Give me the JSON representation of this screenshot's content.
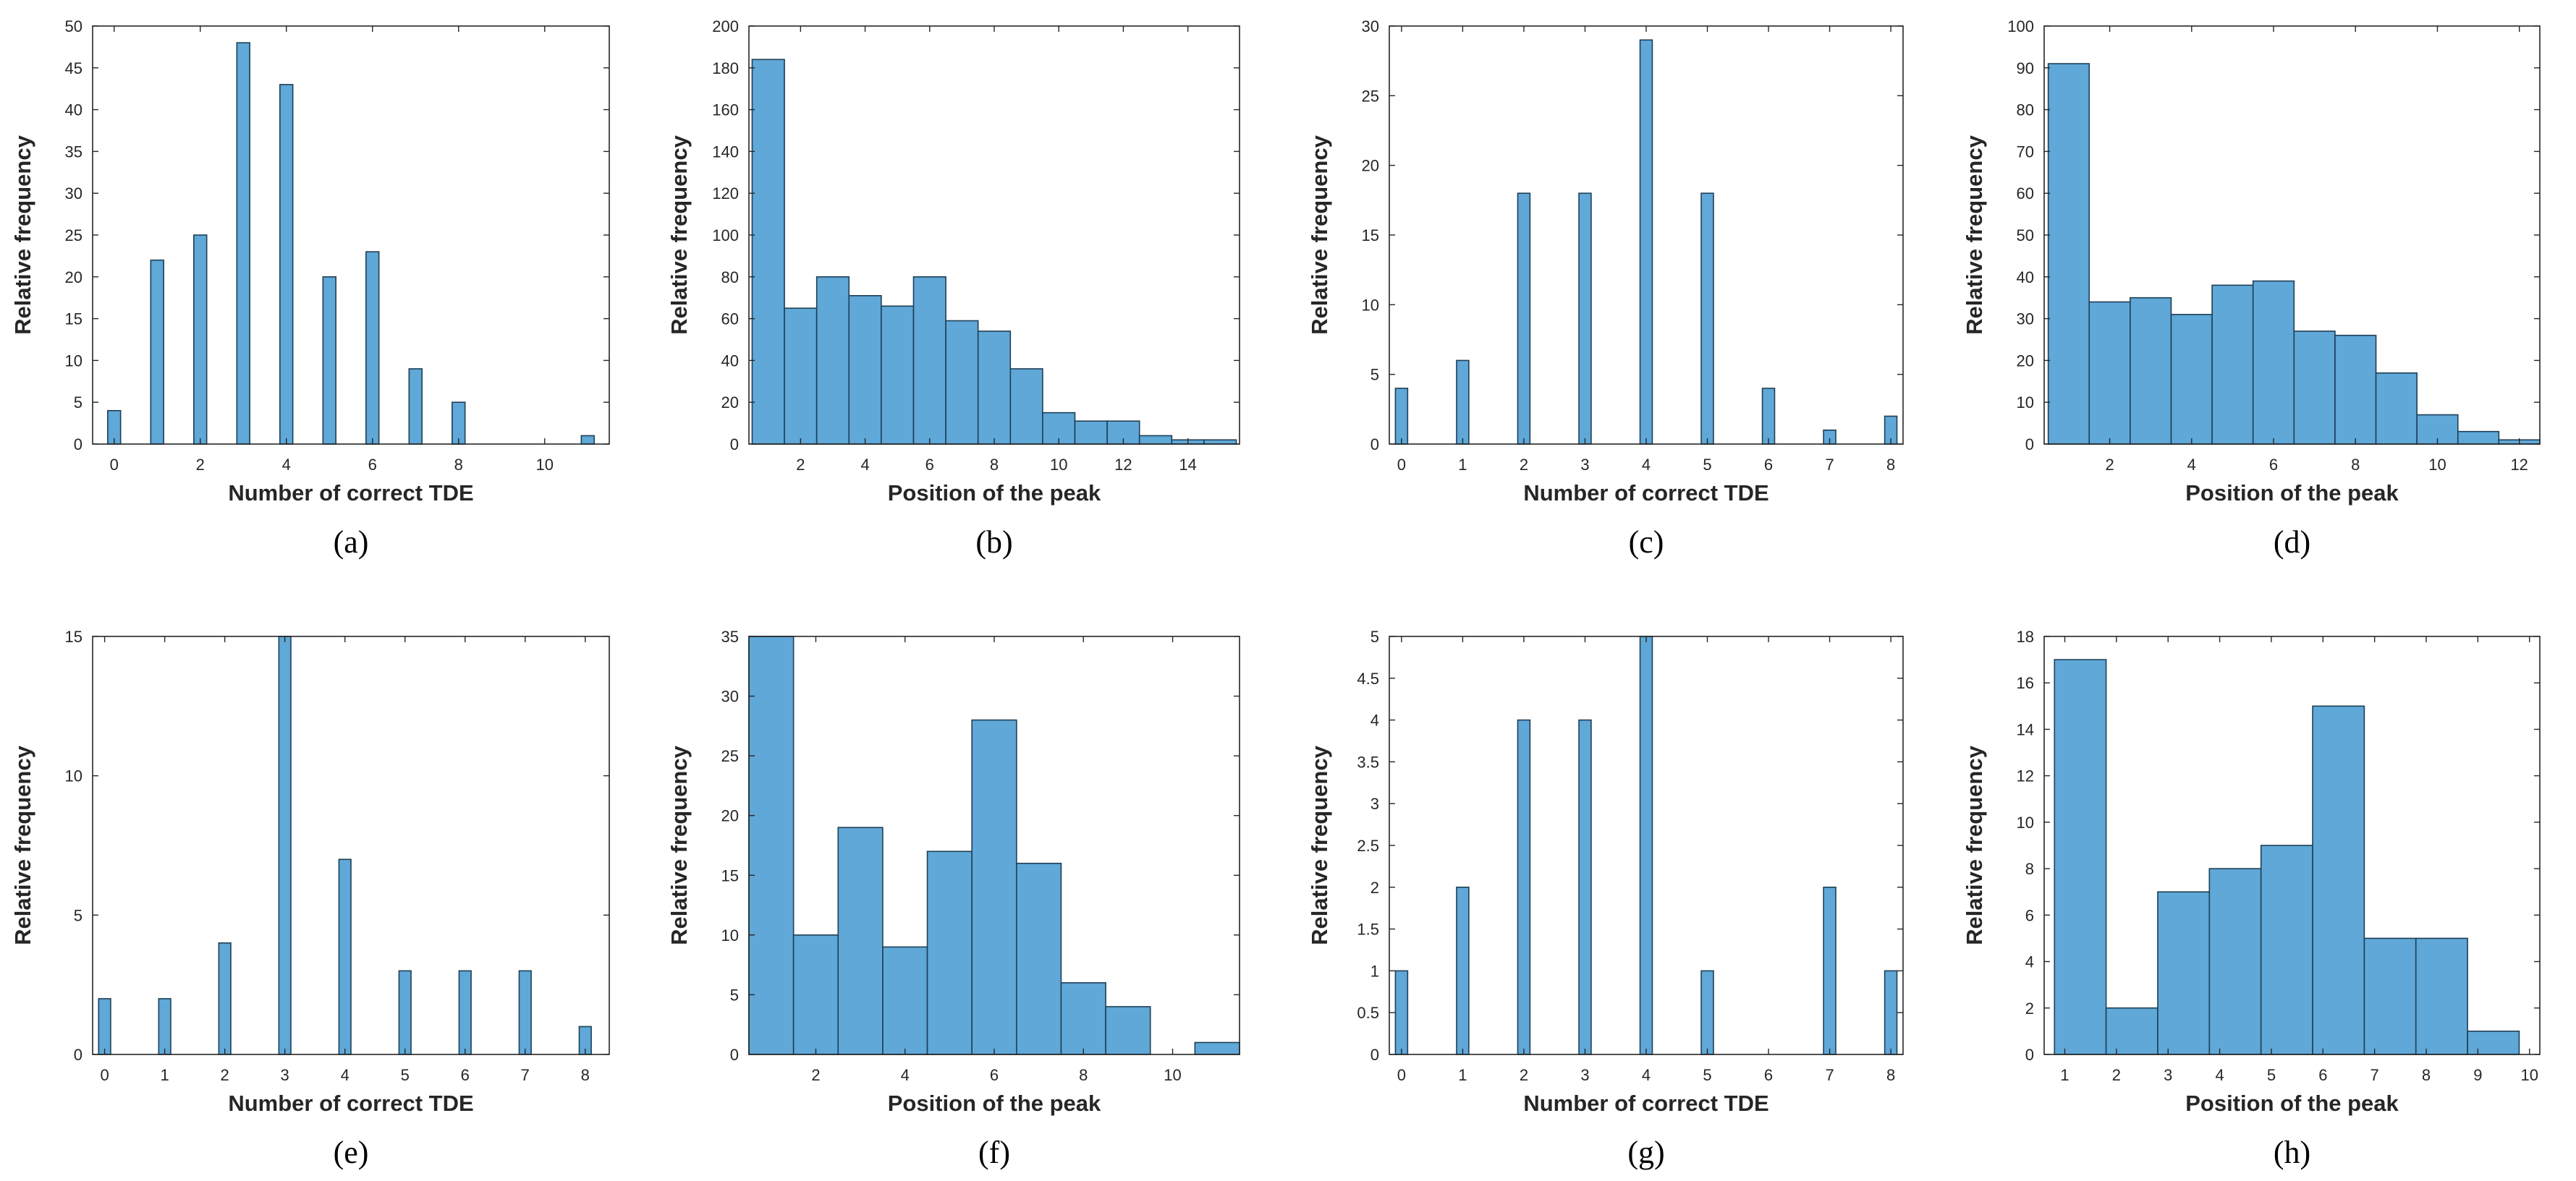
{
  "colors": {
    "bar_fill": "#5fa8d8",
    "bar_edge": "#1f3f55",
    "axis": "#262626"
  },
  "chart_data": [
    {
      "id": "a",
      "caption": "(a)",
      "type": "bar",
      "xlabel": "Number of correct TDE",
      "ylabel": "Relative frequency",
      "xlim": [
        -0.5,
        11.5
      ],
      "ylim": [
        0,
        50
      ],
      "xticks": [
        0,
        2,
        4,
        6,
        8,
        10
      ],
      "xtick_labels": [
        "0",
        "2",
        "4",
        "6",
        "8",
        "10"
      ],
      "yticks": [
        0,
        5,
        10,
        15,
        20,
        25,
        30,
        35,
        40,
        45,
        50
      ],
      "ytick_labels": [
        "0",
        "5",
        "10",
        "15",
        "20",
        "25",
        "30",
        "35",
        "40",
        "45",
        "50"
      ],
      "bin_width": 0.3,
      "bins": [
        {
          "center": 0,
          "value": 4
        },
        {
          "center": 1,
          "value": 22
        },
        {
          "center": 2,
          "value": 25
        },
        {
          "center": 3,
          "value": 48
        },
        {
          "center": 4,
          "value": 43
        },
        {
          "center": 5,
          "value": 20
        },
        {
          "center": 6,
          "value": 23
        },
        {
          "center": 7,
          "value": 9
        },
        {
          "center": 8,
          "value": 5
        },
        {
          "center": 11,
          "value": 1
        }
      ]
    },
    {
      "id": "b",
      "caption": "(b)",
      "type": "bar",
      "xlabel": "Position of the peak",
      "ylabel": "Relative frequency",
      "xlim": [
        0.4,
        15.6
      ],
      "ylim": [
        0,
        200
      ],
      "xticks": [
        2,
        4,
        6,
        8,
        10,
        12,
        14
      ],
      "xtick_labels": [
        "2",
        "4",
        "6",
        "8",
        "10",
        "12",
        "14"
      ],
      "yticks": [
        0,
        20,
        40,
        60,
        80,
        100,
        120,
        140,
        160,
        180,
        200
      ],
      "ytick_labels": [
        "0",
        "20",
        "40",
        "60",
        "80",
        "100",
        "120",
        "140",
        "160",
        "180",
        "200"
      ],
      "bin_width": 1.0,
      "bins": [
        {
          "center": 1,
          "value": 184
        },
        {
          "center": 2,
          "value": 65
        },
        {
          "center": 3,
          "value": 80
        },
        {
          "center": 4,
          "value": 71
        },
        {
          "center": 5,
          "value": 66
        },
        {
          "center": 6,
          "value": 80
        },
        {
          "center": 7,
          "value": 59
        },
        {
          "center": 8,
          "value": 54
        },
        {
          "center": 9,
          "value": 36
        },
        {
          "center": 10,
          "value": 15
        },
        {
          "center": 11,
          "value": 11
        },
        {
          "center": 12,
          "value": 11
        },
        {
          "center": 13,
          "value": 4
        },
        {
          "center": 14,
          "value": 2
        },
        {
          "center": 15,
          "value": 2
        }
      ]
    },
    {
      "id": "c",
      "caption": "(c)",
      "type": "bar",
      "xlabel": "Number of correct TDE",
      "ylabel": "Relative frequency",
      "xlim": [
        -0.2,
        8.2
      ],
      "ylim": [
        0,
        30
      ],
      "xticks": [
        0,
        1,
        2,
        3,
        4,
        5,
        6,
        7,
        8
      ],
      "xtick_labels": [
        "0",
        "1",
        "2",
        "3",
        "4",
        "5",
        "6",
        "7",
        "8"
      ],
      "yticks": [
        0,
        5,
        10,
        15,
        20,
        25,
        30
      ],
      "ytick_labels": [
        "0",
        "5",
        "10",
        "15",
        "20",
        "25",
        "30"
      ],
      "bin_width": 0.2,
      "bins": [
        {
          "center": 0,
          "value": 4
        },
        {
          "center": 1,
          "value": 6
        },
        {
          "center": 2,
          "value": 18
        },
        {
          "center": 3,
          "value": 18
        },
        {
          "center": 4,
          "value": 29
        },
        {
          "center": 5,
          "value": 18
        },
        {
          "center": 6,
          "value": 4
        },
        {
          "center": 7,
          "value": 1
        },
        {
          "center": 8,
          "value": 2
        }
      ]
    },
    {
      "id": "d",
      "caption": "(d)",
      "type": "bar",
      "xlabel": "Position of the peak",
      "ylabel": "Relative frequency",
      "xlim": [
        0.4,
        12.5
      ],
      "ylim": [
        0,
        100
      ],
      "xticks": [
        2,
        4,
        6,
        8,
        10,
        12
      ],
      "xtick_labels": [
        "2",
        "4",
        "6",
        "8",
        "10",
        "12"
      ],
      "yticks": [
        0,
        10,
        20,
        30,
        40,
        50,
        60,
        70,
        80,
        90,
        100
      ],
      "ytick_labels": [
        "0",
        "10",
        "20",
        "30",
        "40",
        "50",
        "60",
        "70",
        "80",
        "90",
        "100"
      ],
      "bin_width": 1.0,
      "bins": [
        {
          "center": 1,
          "value": 91
        },
        {
          "center": 2,
          "value": 34
        },
        {
          "center": 3,
          "value": 35
        },
        {
          "center": 4,
          "value": 31
        },
        {
          "center": 5,
          "value": 38
        },
        {
          "center": 6,
          "value": 39
        },
        {
          "center": 7,
          "value": 27
        },
        {
          "center": 8,
          "value": 26
        },
        {
          "center": 9,
          "value": 17
        },
        {
          "center": 10,
          "value": 7
        },
        {
          "center": 11,
          "value": 3
        },
        {
          "center": 12,
          "value": 1
        }
      ]
    },
    {
      "id": "e",
      "caption": "(e)",
      "type": "bar",
      "xlabel": "Number of correct TDE",
      "ylabel": "Relative frequency",
      "xlim": [
        -0.2,
        8.4
      ],
      "ylim": [
        0,
        15
      ],
      "xticks": [
        0,
        1,
        2,
        3,
        4,
        5,
        6,
        7,
        8
      ],
      "xtick_labels": [
        "0",
        "1",
        "2",
        "3",
        "4",
        "5",
        "6",
        "7",
        "8"
      ],
      "yticks": [
        0,
        5,
        10,
        15
      ],
      "ytick_labels": [
        "0",
        "5",
        "10",
        "15"
      ],
      "bin_width": 0.2,
      "bins": [
        {
          "center": 0,
          "value": 2
        },
        {
          "center": 1,
          "value": 2
        },
        {
          "center": 2,
          "value": 4
        },
        {
          "center": 3,
          "value": 15
        },
        {
          "center": 4,
          "value": 7
        },
        {
          "center": 5,
          "value": 3
        },
        {
          "center": 6,
          "value": 3
        },
        {
          "center": 7,
          "value": 3
        },
        {
          "center": 8,
          "value": 1
        }
      ]
    },
    {
      "id": "f",
      "caption": "(f)",
      "type": "bar",
      "xlabel": "Position of the peak",
      "ylabel": "Relative frequency",
      "xlim": [
        0.5,
        11.5
      ],
      "ylim": [
        0,
        35
      ],
      "xticks": [
        2,
        4,
        6,
        8,
        10
      ],
      "xtick_labels": [
        "2",
        "4",
        "6",
        "8",
        "10"
      ],
      "yticks": [
        0,
        5,
        10,
        15,
        20,
        25,
        30,
        35
      ],
      "ytick_labels": [
        "0",
        "5",
        "10",
        "15",
        "20",
        "25",
        "30",
        "35"
      ],
      "bin_width": 1.0,
      "bins": [
        {
          "center": 1,
          "value": 35
        },
        {
          "center": 2,
          "value": 10
        },
        {
          "center": 3,
          "value": 19
        },
        {
          "center": 4,
          "value": 9
        },
        {
          "center": 5,
          "value": 17
        },
        {
          "center": 6,
          "value": 28
        },
        {
          "center": 7,
          "value": 16
        },
        {
          "center": 8,
          "value": 6
        },
        {
          "center": 9,
          "value": 4
        },
        {
          "center": 10,
          "value": 0
        },
        {
          "center": 11,
          "value": 1
        }
      ]
    },
    {
      "id": "g",
      "caption": "(g)",
      "type": "bar",
      "xlabel": "Number of correct TDE",
      "ylabel": "Relative frequency",
      "xlim": [
        -0.2,
        8.2
      ],
      "ylim": [
        0,
        5
      ],
      "xticks": [
        0,
        1,
        2,
        3,
        4,
        5,
        6,
        7,
        8
      ],
      "xtick_labels": [
        "0",
        "1",
        "2",
        "3",
        "4",
        "5",
        "6",
        "7",
        "8"
      ],
      "yticks": [
        0,
        0.5,
        1,
        1.5,
        2,
        2.5,
        3,
        3.5,
        4,
        4.5,
        5
      ],
      "ytick_labels": [
        "0",
        "0.5",
        "1",
        "1.5",
        "2",
        "2.5",
        "3",
        "3.5",
        "4",
        "4.5",
        "5"
      ],
      "bin_width": 0.2,
      "bins": [
        {
          "center": 0,
          "value": 1
        },
        {
          "center": 1,
          "value": 2
        },
        {
          "center": 2,
          "value": 4
        },
        {
          "center": 3,
          "value": 4
        },
        {
          "center": 4,
          "value": 5
        },
        {
          "center": 5,
          "value": 1
        },
        {
          "center": 7,
          "value": 2
        },
        {
          "center": 8,
          "value": 1
        }
      ]
    },
    {
      "id": "h",
      "caption": "(h)",
      "type": "bar",
      "xlabel": "Position of the peak",
      "ylabel": "Relative frequency",
      "xlim": [
        0.6,
        10.2
      ],
      "ylim": [
        0,
        18
      ],
      "xticks": [
        1,
        2,
        3,
        4,
        5,
        6,
        7,
        8,
        9,
        10
      ],
      "xtick_labels": [
        "1",
        "2",
        "3",
        "4",
        "5",
        "6",
        "7",
        "8",
        "9",
        "10"
      ],
      "yticks": [
        0,
        2,
        4,
        6,
        8,
        10,
        12,
        14,
        16,
        18
      ],
      "ytick_labels": [
        "0",
        "2",
        "4",
        "6",
        "8",
        "10",
        "12",
        "14",
        "16",
        "18"
      ],
      "bin_width": 1.0,
      "bins": [
        {
          "center": 1.3,
          "value": 17
        },
        {
          "center": 2.3,
          "value": 2
        },
        {
          "center": 3.3,
          "value": 7
        },
        {
          "center": 4.3,
          "value": 8
        },
        {
          "center": 5.3,
          "value": 9
        },
        {
          "center": 6.3,
          "value": 15
        },
        {
          "center": 7.3,
          "value": 5
        },
        {
          "center": 8.3,
          "value": 5
        },
        {
          "center": 9.3,
          "value": 1
        }
      ]
    }
  ]
}
